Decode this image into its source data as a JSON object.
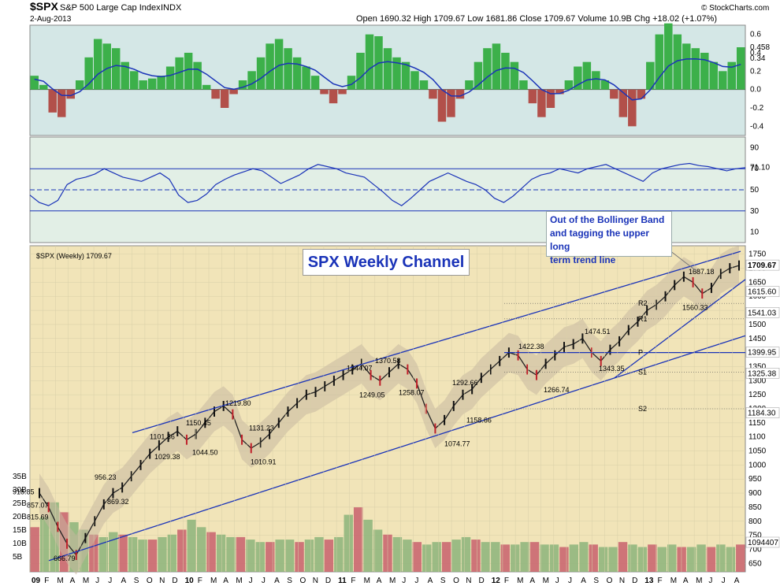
{
  "header": {
    "symbol": "$SPX",
    "name": "S&P 500 Large Cap Index",
    "exchange": "INDX",
    "date": "2-Aug-2013",
    "ohlc": "Open 1690.32  High 1709.67  Low 1681.86  Close 1709.67  Volume 10.9B  Chg +18.02 (+1.07%)",
    "watermark": "© StockCharts.com"
  },
  "annotations": {
    "chart_title": "SPX Weekly Channel",
    "callout": [
      "Out of the Bollinger Band",
      "and tagging the upper long",
      "term trend line"
    ],
    "price_legend": "$SPX (Weekly) 1709.67"
  },
  "colors": {
    "positive_bar": "#3cb04a",
    "negative_bar": "#b2504a",
    "line": "#1a33b8",
    "bb_fill": "#c7b8a0",
    "volume_up": "#8cb47a",
    "volume_down": "#c8606c"
  },
  "chart_data": [
    {
      "type": "bar",
      "panel": "momentum histogram",
      "x_domain": [
        "2009-01",
        "2013-08"
      ],
      "ylim": [
        -0.5,
        0.7
      ],
      "yticks": [
        "0.6",
        "0.4",
        "0.2",
        "0.0",
        "-0.2",
        "-0.4"
      ],
      "last_value": "0.458",
      "signal_value": "0.34",
      "series": [
        {
          "values": [
            0.15,
            0.05,
            -0.25,
            -0.3,
            -0.1,
            0.1,
            0.35,
            0.55,
            0.5,
            0.45,
            0.3,
            0.2,
            0.1,
            0.12,
            0.15,
            0.25,
            0.35,
            0.4,
            0.3,
            0.05,
            -0.1,
            -0.2,
            -0.05,
            0.1,
            0.2,
            0.35,
            0.5,
            0.55,
            0.45,
            0.35,
            0.25,
            0.15,
            -0.05,
            -0.15,
            -0.05,
            0.15,
            0.4,
            0.6,
            0.58,
            0.45,
            0.35,
            0.3,
            0.2,
            0.1,
            -0.1,
            -0.35,
            -0.3,
            -0.1,
            0.1,
            0.3,
            0.45,
            0.5,
            0.4,
            0.3,
            0.1,
            -0.15,
            -0.3,
            -0.2,
            -0.05,
            0.1,
            0.25,
            0.3,
            0.2,
            0.1,
            -0.1,
            -0.3,
            -0.4,
            -0.1,
            0.3,
            0.6,
            0.72,
            0.6,
            0.5,
            0.45,
            0.4,
            0.3,
            0.2,
            0.3,
            0.46
          ]
        }
      ]
    },
    {
      "type": "line",
      "panel": "RSI",
      "ylim": [
        0,
        100
      ],
      "yticks": [
        "90",
        "70",
        "50",
        "30",
        "10"
      ],
      "reference_lines": [
        70,
        50,
        30
      ],
      "last_value": "71.10",
      "series": [
        {
          "values": [
            45,
            38,
            35,
            40,
            55,
            60,
            62,
            65,
            70,
            66,
            62,
            60,
            58,
            62,
            66,
            60,
            45,
            38,
            40,
            46,
            55,
            60,
            64,
            67,
            70,
            68,
            62,
            56,
            60,
            64,
            70,
            74,
            72,
            70,
            66,
            64,
            62,
            55,
            48,
            40,
            35,
            42,
            50,
            58,
            62,
            66,
            62,
            58,
            55,
            50,
            42,
            38,
            44,
            52,
            60,
            64,
            66,
            70,
            68,
            66,
            70,
            72,
            74,
            70,
            66,
            62,
            58,
            66,
            70,
            72,
            74,
            75,
            73,
            72,
            70,
            68,
            70,
            71
          ]
        }
      ]
    },
    {
      "type": "line",
      "panel": "price (weekly candles)",
      "ylim": [
        620,
        1780
      ],
      "yticks": [
        "1750",
        "1700",
        "1650",
        "1600",
        "1550",
        "1500",
        "1450",
        "1400",
        "1350",
        "1300",
        "1250",
        "1200",
        "1150",
        "1100",
        "1050",
        "1000",
        "950",
        "900",
        "850",
        "800",
        "750",
        "700",
        "650"
      ],
      "x_ticks": [
        "09",
        "F",
        "M",
        "A",
        "M",
        "J",
        "J",
        "A",
        "S",
        "O",
        "N",
        "D",
        "10",
        "F",
        "M",
        "A",
        "M",
        "J",
        "J",
        "A",
        "S",
        "O",
        "N",
        "D",
        "11",
        "F",
        "M",
        "A",
        "M",
        "J",
        "J",
        "A",
        "S",
        "O",
        "N",
        "D",
        "12",
        "F",
        "M",
        "A",
        "M",
        "J",
        "J",
        "A",
        "S",
        "O",
        "N",
        "D",
        "13",
        "F",
        "M",
        "A",
        "M",
        "J",
        "J",
        "A"
      ],
      "last_value": "1709.67",
      "right_labels": [
        "1709.67",
        "1615.60",
        "1541.03",
        "1399.95",
        "1325.38",
        "1184.30",
        "1094407"
      ],
      "pivot_labels": [
        "R2",
        "R1",
        "P",
        "S1",
        "S2"
      ],
      "peak_labels": [
        "918.85",
        "857.07",
        "815.69",
        "666.79",
        "956.23",
        "869.32",
        "1029.38",
        "1101.36",
        "1150.45",
        "1044.50",
        "1219.80",
        "1131.23",
        "1010.91",
        "1344.07",
        "1370.58",
        "1249.05",
        "1258.07",
        "1292.66",
        "1158.66",
        "1074.77",
        "1422.38",
        "1266.74",
        "1474.51",
        "1343.35",
        "1687.18",
        "1560.33"
      ],
      "series": [
        {
          "name": "$SPX",
          "values": [
            900,
            850,
            780,
            720,
            680,
            740,
            800,
            860,
            900,
            920,
            960,
            1000,
            1040,
            1070,
            1100,
            1120,
            1090,
            1110,
            1150,
            1190,
            1210,
            1180,
            1090,
            1060,
            1080,
            1110,
            1150,
            1190,
            1220,
            1250,
            1260,
            1280,
            1300,
            1320,
            1340,
            1360,
            1320,
            1300,
            1330,
            1360,
            1340,
            1290,
            1200,
            1130,
            1160,
            1210,
            1250,
            1270,
            1310,
            1340,
            1370,
            1400,
            1390,
            1340,
            1320,
            1360,
            1390,
            1420,
            1430,
            1450,
            1400,
            1370,
            1410,
            1440,
            1480,
            1510,
            1550,
            1570,
            1600,
            1640,
            1670,
            1650,
            1610,
            1630,
            1680,
            1700,
            1709.67
          ]
        }
      ]
    },
    {
      "type": "bar",
      "panel": "volume",
      "yticks": [
        "35B",
        "30B",
        "25B",
        "20B",
        "15B",
        "10B",
        "5B"
      ],
      "series": [
        {
          "values": [
            18,
            22,
            28,
            24,
            20,
            17,
            15,
            14,
            16,
            15,
            14,
            13,
            13,
            14,
            15,
            17,
            21,
            18,
            16,
            15,
            14,
            14,
            13,
            12,
            12,
            13,
            13,
            12,
            13,
            14,
            13,
            14,
            23,
            26,
            21,
            17,
            15,
            14,
            13,
            12,
            11,
            12,
            12,
            13,
            14,
            13,
            12,
            12,
            11,
            11,
            12,
            12,
            11,
            11,
            10,
            11,
            12,
            11,
            10,
            10,
            12,
            11,
            10,
            11,
            10,
            11,
            10,
            10,
            11,
            10,
            11,
            10,
            11
          ]
        }
      ]
    }
  ]
}
